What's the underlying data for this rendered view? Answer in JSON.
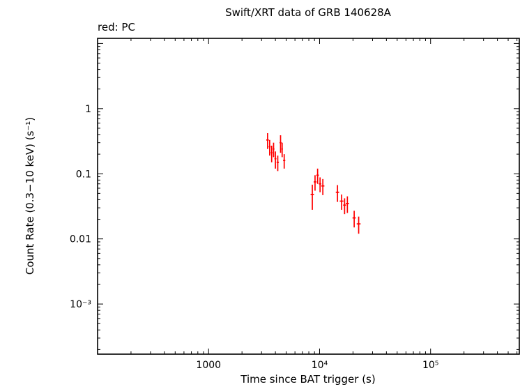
{
  "figure": {
    "title": "Swift/XRT data of GRB 140628A",
    "mode_label": "red: PC",
    "x_axis_label": "Time since BAT trigger (s)",
    "y_axis_label": "Count Rate (0.3−10 keV) (s⁻¹)"
  },
  "chart_data": {
    "type": "scatter",
    "title": "Swift/XRT data of GRB 140628A",
    "xlabel": "Time since BAT trigger (s)",
    "ylabel": "Count Rate (0.3−10 keV) (s⁻¹)",
    "x_scale": "log",
    "y_scale": "log",
    "xlim": [
      100,
      630000
    ],
    "ylim": [
      0.00017,
      12
    ],
    "grid": false,
    "legend_position": "top-left-outside",
    "x_ticks_labeled": [
      {
        "v": 1000,
        "label": "1000"
      },
      {
        "v": 10000,
        "label": "10⁴"
      },
      {
        "v": 100000,
        "label": "10⁵"
      }
    ],
    "y_ticks_labeled": [
      {
        "v": 1,
        "label": "1"
      },
      {
        "v": 0.1,
        "label": "0.1"
      },
      {
        "v": 0.01,
        "label": "0.01"
      },
      {
        "v": 0.001,
        "label": "10⁻³"
      }
    ],
    "series": [
      {
        "name": "PC",
        "color": "#ff0000",
        "marker": "errorbar-cross",
        "points": [
          {
            "t": 3400,
            "t_err": 90,
            "rate": 0.33,
            "rate_err": 0.09
          },
          {
            "t": 3550,
            "t_err": 70,
            "rate": 0.26,
            "rate_err": 0.07
          },
          {
            "t": 3700,
            "t_err": 70,
            "rate": 0.21,
            "rate_err": 0.06
          },
          {
            "t": 3850,
            "t_err": 70,
            "rate": 0.24,
            "rate_err": 0.06
          },
          {
            "t": 4000,
            "t_err": 80,
            "rate": 0.17,
            "rate_err": 0.05
          },
          {
            "t": 4200,
            "t_err": 100,
            "rate": 0.15,
            "rate_err": 0.04
          },
          {
            "t": 4450,
            "t_err": 90,
            "rate": 0.3,
            "rate_err": 0.09
          },
          {
            "t": 4600,
            "t_err": 70,
            "rate": 0.24,
            "rate_err": 0.06
          },
          {
            "t": 4800,
            "t_err": 110,
            "rate": 0.16,
            "rate_err": 0.04
          },
          {
            "t": 8600,
            "t_err": 300,
            "rate": 0.048,
            "rate_err": 0.02
          },
          {
            "t": 9100,
            "t_err": 250,
            "rate": 0.075,
            "rate_err": 0.02
          },
          {
            "t": 9600,
            "t_err": 250,
            "rate": 0.095,
            "rate_err": 0.025
          },
          {
            "t": 10100,
            "t_err": 250,
            "rate": 0.07,
            "rate_err": 0.018
          },
          {
            "t": 10700,
            "t_err": 350,
            "rate": 0.065,
            "rate_err": 0.018
          },
          {
            "t": 14500,
            "t_err": 500,
            "rate": 0.052,
            "rate_err": 0.015
          },
          {
            "t": 15800,
            "t_err": 600,
            "rate": 0.038,
            "rate_err": 0.01
          },
          {
            "t": 16800,
            "t_err": 500,
            "rate": 0.033,
            "rate_err": 0.009
          },
          {
            "t": 17800,
            "t_err": 600,
            "rate": 0.035,
            "rate_err": 0.01
          },
          {
            "t": 20500,
            "t_err": 700,
            "rate": 0.021,
            "rate_err": 0.006
          },
          {
            "t": 22500,
            "t_err": 900,
            "rate": 0.017,
            "rate_err": 0.005
          }
        ]
      }
    ]
  }
}
